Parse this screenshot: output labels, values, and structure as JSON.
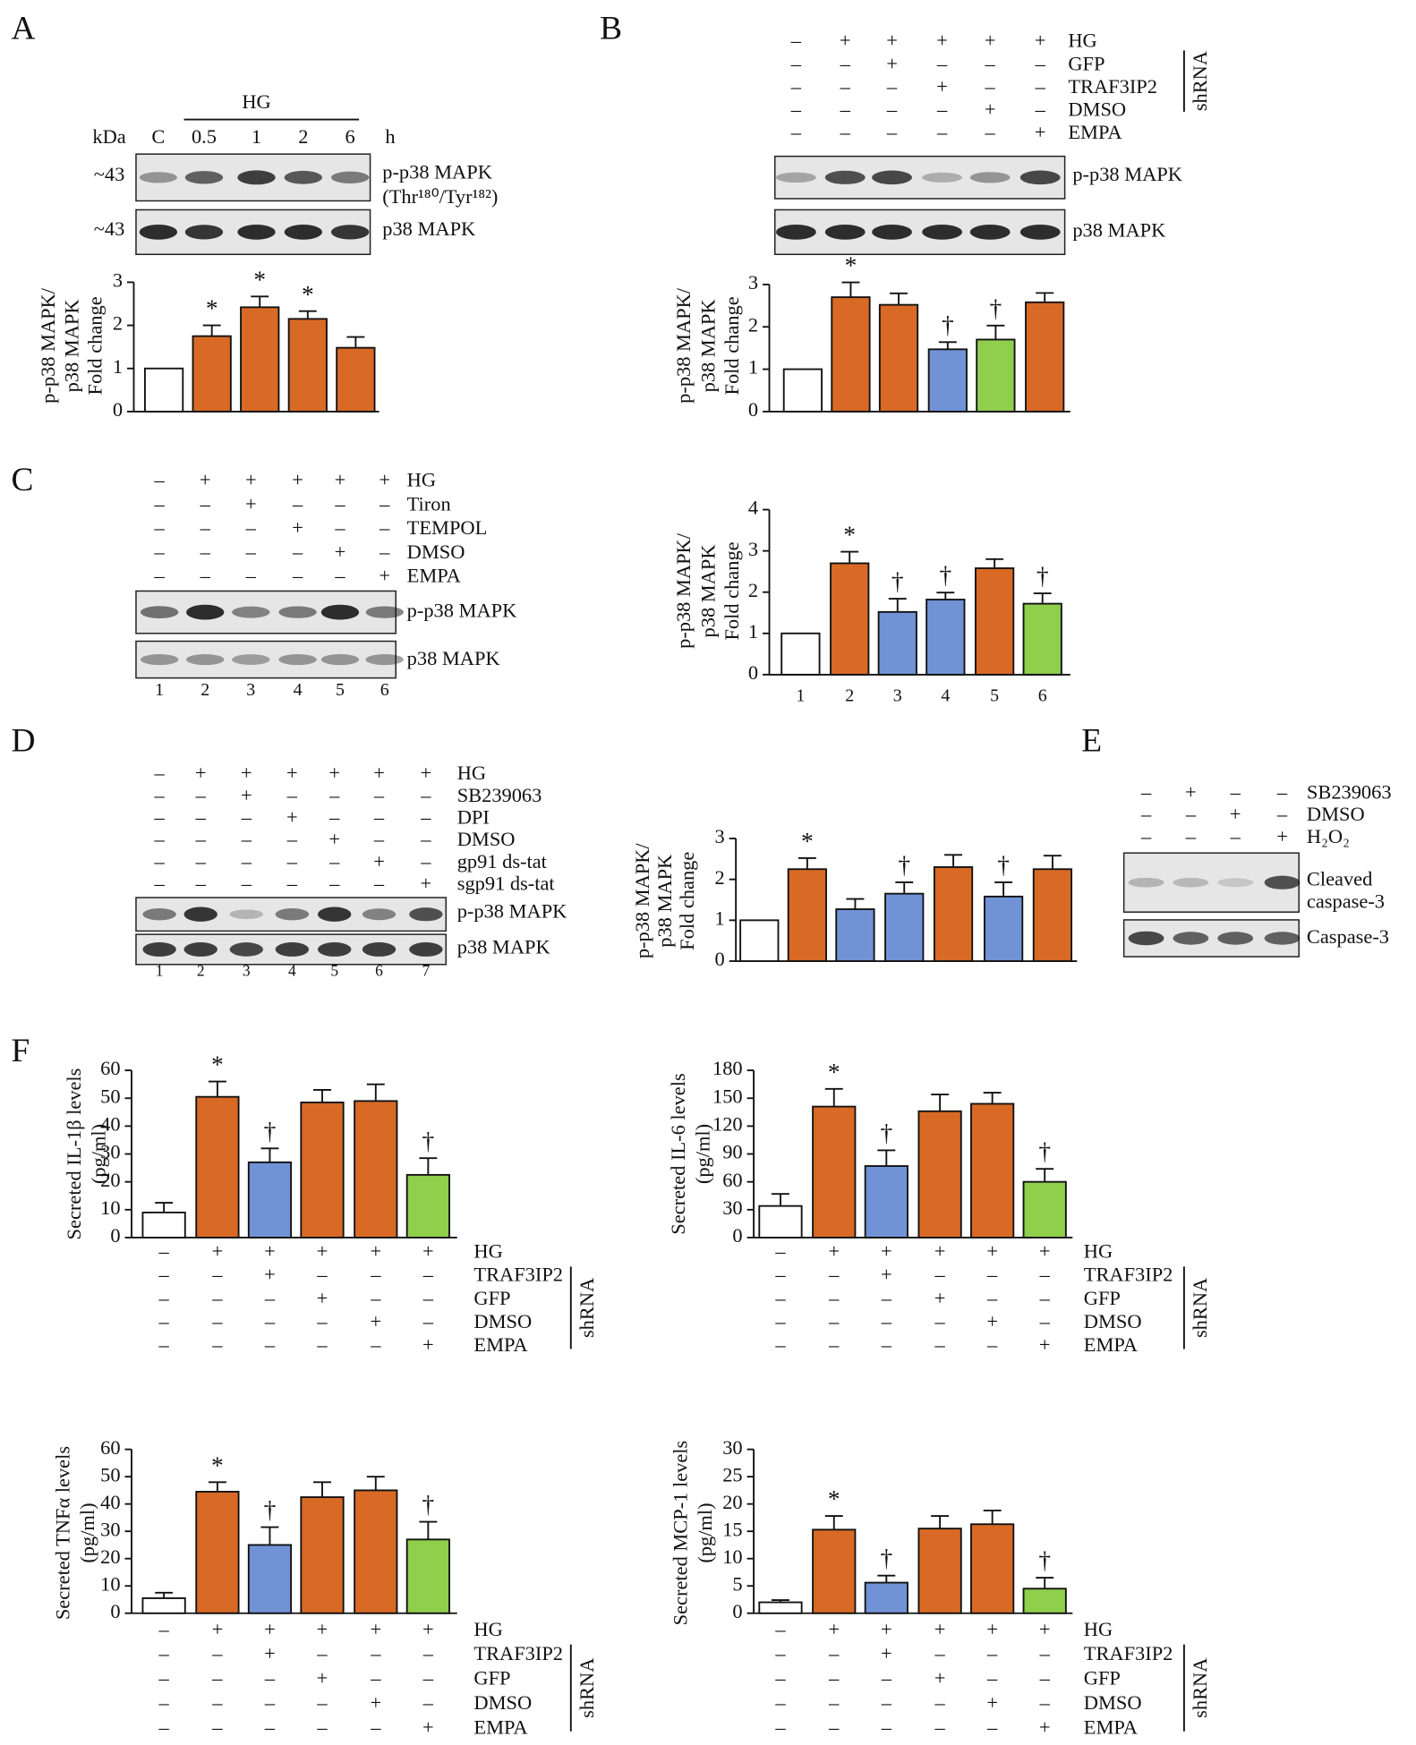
{
  "chart_data": [
    {
      "type": "bar",
      "panel": "A",
      "y_label": [
        "p-p38 MAPK/",
        "p38 MAPK",
        "Fold change"
      ],
      "values": [
        1,
        1.75,
        2.42,
        2.15,
        1.48
      ],
      "errors": [
        0,
        0.25,
        0.25,
        0.18,
        0.25
      ],
      "colors": [
        "#ffffff",
        "#d86a25",
        "#d86a25",
        "#d86a25",
        "#d86a25"
      ],
      "annotations": [
        null,
        "*",
        "*",
        "*",
        null
      ],
      "ylim": [
        0,
        3
      ],
      "yticks": [
        0,
        1,
        2,
        3
      ]
    },
    {
      "type": "bar",
      "panel": "B",
      "y_label": [
        "p-p38 MAPK/",
        "p38 MAPK",
        "Fold change"
      ],
      "values": [
        1,
        2.7,
        2.52,
        1.47,
        1.7,
        2.58
      ],
      "errors": [
        0,
        0.35,
        0.27,
        0.17,
        0.33,
        0.22
      ],
      "colors": [
        "#ffffff",
        "#d86a25",
        "#d86a25",
        "#7193d6",
        "#8fcf4c",
        "#d86a25"
      ],
      "annotations": [
        null,
        "*",
        null,
        "†",
        "†",
        null
      ],
      "ylim": [
        0,
        3
      ],
      "yticks": [
        0,
        1,
        2,
        3
      ]
    },
    {
      "type": "bar",
      "panel": "C",
      "y_label": [
        "p-p38 MAPK/",
        "p38 MAPK",
        "Fold change"
      ],
      "categories": [
        "1",
        "2",
        "3",
        "4",
        "5",
        "6"
      ],
      "values": [
        1,
        2.7,
        1.52,
        1.82,
        2.58,
        1.72
      ],
      "errors": [
        0,
        0.28,
        0.32,
        0.17,
        0.22,
        0.25
      ],
      "colors": [
        "#ffffff",
        "#d86a25",
        "#7193d6",
        "#7193d6",
        "#d86a25",
        "#8fcf4c"
      ],
      "annotations": [
        null,
        "*",
        "†",
        "†",
        null,
        "†"
      ],
      "ylim": [
        0,
        4
      ],
      "yticks": [
        0,
        1,
        2,
        3,
        4
      ]
    },
    {
      "type": "bar",
      "panel": "D",
      "y_label": [
        "p-p38 MAPK/",
        "p38 MAPK",
        "Fold change"
      ],
      "values": [
        1,
        2.25,
        1.27,
        1.65,
        2.3,
        1.58,
        2.25
      ],
      "errors": [
        0,
        0.27,
        0.25,
        0.28,
        0.3,
        0.35,
        0.33
      ],
      "colors": [
        "#ffffff",
        "#d86a25",
        "#7193d6",
        "#7193d6",
        "#d86a25",
        "#7193d6",
        "#d86a25"
      ],
      "annotations": [
        null,
        "*",
        null,
        "†",
        null,
        "†",
        null
      ],
      "ylim": [
        0,
        3
      ],
      "yticks": [
        0,
        1,
        2,
        3
      ]
    },
    {
      "type": "bar",
      "panel": "F",
      "y_label": [
        "Secreted IL-1β levels",
        "(pg/ml)"
      ],
      "values": [
        9,
        50.5,
        27,
        48.5,
        49,
        22.5
      ],
      "errors": [
        3.5,
        5.5,
        5,
        4.5,
        6,
        6
      ],
      "colors": [
        "#ffffff",
        "#d86a25",
        "#7193d6",
        "#d86a25",
        "#d86a25",
        "#8fcf4c"
      ],
      "annotations": [
        null,
        "*",
        "†",
        null,
        null,
        "†"
      ],
      "ylim": [
        0,
        60
      ],
      "yticks": [
        0,
        10,
        20,
        30,
        40,
        50,
        60
      ],
      "conditions": [
        {
          "label": "HG",
          "signs": [
            "–",
            "+",
            "+",
            "+",
            "+",
            "+"
          ]
        },
        {
          "label": "TRAF3IP2",
          "signs": [
            "–",
            "–",
            "+",
            "–",
            "–",
            "–"
          ]
        },
        {
          "label": "GFP",
          "signs": [
            "–",
            "–",
            "–",
            "+",
            "–",
            "–"
          ]
        },
        {
          "label": "DMSO",
          "signs": [
            "–",
            "–",
            "–",
            "–",
            "+",
            "–"
          ]
        },
        {
          "label": "EMPA",
          "signs": [
            "–",
            "–",
            "–",
            "–",
            "–",
            "+"
          ]
        }
      ],
      "group_label": "shRNA"
    },
    {
      "type": "bar",
      "panel": "F",
      "y_label": [
        "Secreted IL-6 levels",
        "(pg/ml)"
      ],
      "values": [
        34,
        141,
        77,
        136,
        144,
        60
      ],
      "errors": [
        13,
        19,
        17,
        18,
        12,
        14
      ],
      "colors": [
        "#ffffff",
        "#d86a25",
        "#7193d6",
        "#d86a25",
        "#d86a25",
        "#8fcf4c"
      ],
      "annotations": [
        null,
        "*",
        "†",
        null,
        null,
        "†"
      ],
      "ylim": [
        0,
        180
      ],
      "yticks": [
        0,
        30,
        60,
        90,
        120,
        150,
        180
      ],
      "conditions": [
        {
          "label": "HG",
          "signs": [
            "–",
            "+",
            "+",
            "+",
            "+",
            "+"
          ]
        },
        {
          "label": "TRAF3IP2",
          "signs": [
            "–",
            "–",
            "+",
            "–",
            "–",
            "–"
          ]
        },
        {
          "label": "GFP",
          "signs": [
            "–",
            "–",
            "–",
            "+",
            "–",
            "–"
          ]
        },
        {
          "label": "DMSO",
          "signs": [
            "–",
            "–",
            "–",
            "–",
            "+",
            "–"
          ]
        },
        {
          "label": "EMPA",
          "signs": [
            "–",
            "–",
            "–",
            "–",
            "–",
            "+"
          ]
        }
      ],
      "group_label": "shRNA"
    },
    {
      "type": "bar",
      "panel": "F",
      "y_label": [
        "Secreted TNFα levels",
        "(pg/ml)"
      ],
      "values": [
        5.5,
        44.5,
        25,
        42.5,
        45,
        27
      ],
      "errors": [
        2,
        3.5,
        6.5,
        5.5,
        5,
        6.5
      ],
      "colors": [
        "#ffffff",
        "#d86a25",
        "#7193d6",
        "#d86a25",
        "#d86a25",
        "#8fcf4c"
      ],
      "annotations": [
        null,
        "*",
        "†",
        null,
        null,
        "†"
      ],
      "ylim": [
        0,
        60
      ],
      "yticks": [
        0,
        10,
        20,
        30,
        40,
        50,
        60
      ],
      "conditions": [
        {
          "label": "HG",
          "signs": [
            "–",
            "+",
            "+",
            "+",
            "+",
            "+"
          ]
        },
        {
          "label": "TRAF3IP2",
          "signs": [
            "–",
            "–",
            "+",
            "–",
            "–",
            "–"
          ]
        },
        {
          "label": "GFP",
          "signs": [
            "–",
            "–",
            "–",
            "+",
            "–",
            "–"
          ]
        },
        {
          "label": "DMSO",
          "signs": [
            "–",
            "–",
            "–",
            "–",
            "+",
            "–"
          ]
        },
        {
          "label": "EMPA",
          "signs": [
            "–",
            "–",
            "–",
            "–",
            "–",
            "+"
          ]
        }
      ],
      "group_label": "shRNA"
    },
    {
      "type": "bar",
      "panel": "F",
      "y_label": [
        "Secreted MCP-1 levels",
        "(pg/ml)"
      ],
      "values": [
        2,
        15.3,
        5.6,
        15.5,
        16.3,
        4.5
      ],
      "errors": [
        0.4,
        2.5,
        1.3,
        2.3,
        2.5,
        2
      ],
      "colors": [
        "#ffffff",
        "#d86a25",
        "#7193d6",
        "#d86a25",
        "#d86a25",
        "#8fcf4c"
      ],
      "annotations": [
        null,
        "*",
        "†",
        null,
        null,
        "†"
      ],
      "ylim": [
        0,
        30
      ],
      "yticks": [
        0,
        5,
        10,
        15,
        20,
        25,
        30
      ],
      "conditions": [
        {
          "label": "HG",
          "signs": [
            "–",
            "+",
            "+",
            "+",
            "+",
            "+"
          ]
        },
        {
          "label": "TRAF3IP2",
          "signs": [
            "–",
            "–",
            "+",
            "–",
            "–",
            "–"
          ]
        },
        {
          "label": "GFP",
          "signs": [
            "–",
            "–",
            "–",
            "+",
            "–",
            "–"
          ]
        },
        {
          "label": "DMSO",
          "signs": [
            "–",
            "–",
            "–",
            "–",
            "+",
            "–"
          ]
        },
        {
          "label": "EMPA",
          "signs": [
            "–",
            "–",
            "–",
            "–",
            "–",
            "+"
          ]
        }
      ],
      "group_label": "shRNA"
    }
  ],
  "panels": [
    {
      "letter": "A",
      "header": "HG",
      "unit_left": "kDa",
      "unit_right": "h",
      "lanes": [
        "C",
        "0.5",
        "1",
        "2",
        "6"
      ],
      "blots": [
        {
          "size": "~43",
          "label": [
            "p-p38 MAPK",
            "(Thr¹⁸⁰/Tyr¹⁸²)"
          ]
        },
        {
          "size": "~43",
          "label": [
            "p38 MAPK"
          ]
        }
      ]
    },
    {
      "letter": "B",
      "conditions": [
        {
          "label": "HG",
          "signs": [
            "–",
            "+",
            "+",
            "+",
            "+",
            "+"
          ]
        },
        {
          "label": "GFP",
          "signs": [
            "–",
            "–",
            "+",
            "–",
            "–",
            "–"
          ]
        },
        {
          "label": "TRAF3IP2",
          "signs": [
            "–",
            "–",
            "–",
            "+",
            "–",
            "–"
          ]
        },
        {
          "label": "DMSO",
          "signs": [
            "–",
            "–",
            "–",
            "–",
            "+",
            "–"
          ]
        },
        {
          "label": "EMPA",
          "signs": [
            "–",
            "–",
            "–",
            "–",
            "–",
            "+"
          ]
        }
      ],
      "group_label": "shRNA",
      "blots": [
        {
          "label": [
            "p-p38 MAPK"
          ]
        },
        {
          "label": [
            "p38 MAPK"
          ]
        }
      ]
    },
    {
      "letter": "C",
      "conditions": [
        {
          "label": "HG",
          "signs": [
            "–",
            "+",
            "+",
            "+",
            "+",
            "+"
          ]
        },
        {
          "label": "Tiron",
          "signs": [
            "–",
            "–",
            "+",
            "–",
            "–",
            "–"
          ]
        },
        {
          "label": "TEMPOL",
          "signs": [
            "–",
            "–",
            "–",
            "+",
            "–",
            "–"
          ]
        },
        {
          "label": "DMSO",
          "signs": [
            "–",
            "–",
            "–",
            "–",
            "+",
            "–"
          ]
        },
        {
          "label": "EMPA",
          "signs": [
            "–",
            "–",
            "–",
            "–",
            "–",
            "+"
          ]
        }
      ],
      "blots": [
        {
          "label": [
            "p-p38 MAPK"
          ]
        },
        {
          "label": [
            "p38 MAPK"
          ]
        }
      ],
      "lanes": [
        "1",
        "2",
        "3",
        "4",
        "5",
        "6"
      ]
    },
    {
      "letter": "D",
      "conditions": [
        {
          "label": "HG",
          "signs": [
            "–",
            "+",
            "+",
            "+",
            "+",
            "+",
            "+"
          ]
        },
        {
          "label": "SB239063",
          "signs": [
            "–",
            "–",
            "+",
            "–",
            "–",
            "–",
            "–"
          ]
        },
        {
          "label": "DPI",
          "signs": [
            "–",
            "–",
            "–",
            "+",
            "–",
            "–",
            "–"
          ]
        },
        {
          "label": "DMSO",
          "signs": [
            "–",
            "–",
            "–",
            "–",
            "+",
            "–",
            "–"
          ]
        },
        {
          "label": "gp91 ds-tat",
          "signs": [
            "–",
            "–",
            "–",
            "–",
            "–",
            "+",
            "–"
          ]
        },
        {
          "label": "sgp91 ds-tat",
          "signs": [
            "–",
            "–",
            "–",
            "–",
            "–",
            "–",
            "+"
          ]
        }
      ],
      "blots": [
        {
          "label": [
            "p-p38 MAPK"
          ]
        },
        {
          "label": [
            "p38 MAPK"
          ]
        }
      ],
      "lanes": [
        "1",
        "2",
        "3",
        "4",
        "5",
        "6",
        "7"
      ]
    },
    {
      "letter": "E",
      "conditions": [
        {
          "label": "SB239063",
          "signs": [
            "–",
            "+",
            "–",
            "–"
          ]
        },
        {
          "label": "DMSO",
          "signs": [
            "–",
            "–",
            "+",
            "–"
          ]
        },
        {
          "label": "H₂O₂",
          "signs": [
            "–",
            "–",
            "–",
            "+"
          ]
        }
      ],
      "blots": [
        {
          "label": [
            "Cleaved",
            "caspase-3"
          ]
        },
        {
          "label": [
            "Caspase-3"
          ]
        }
      ]
    },
    {
      "letter": "F"
    }
  ]
}
